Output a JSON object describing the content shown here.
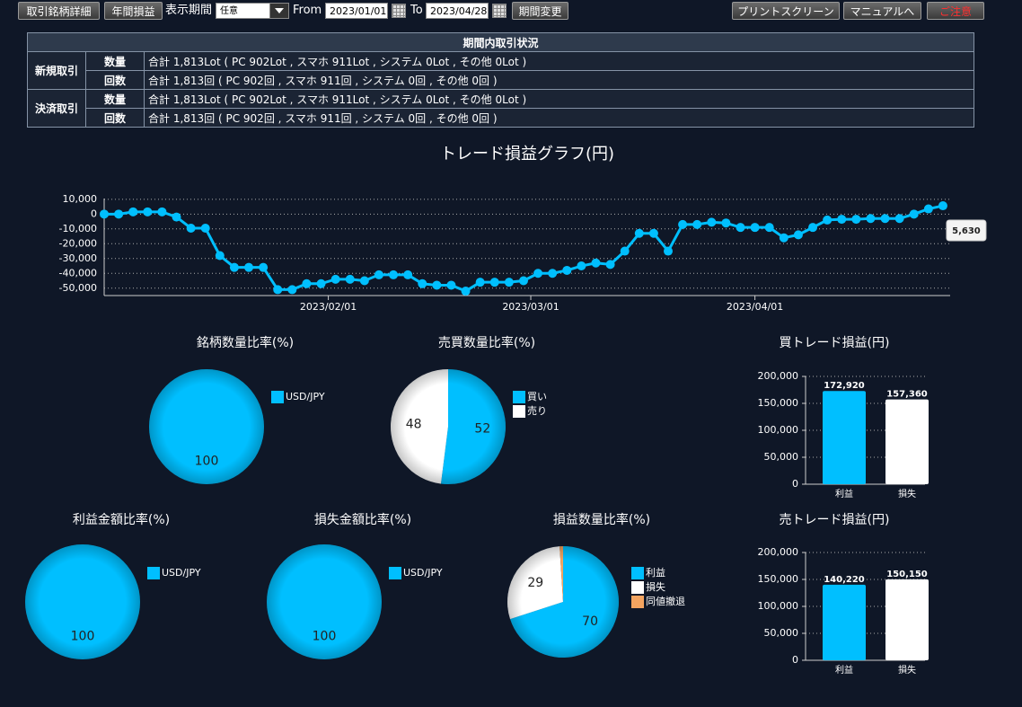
{
  "toolbar": {
    "buttons_left": [
      "取引銘柄詳細",
      "年間損益"
    ],
    "period_label": "表示期間",
    "period_select": "任意",
    "from_label": "From",
    "from_date": "2023/01/01",
    "to_label": "To",
    "to_date": "2023/04/28",
    "apply_button": "期間変更",
    "buttons_right": [
      "プリントスクリーン",
      "マニュアルへ",
      "ご注意"
    ]
  },
  "table": {
    "title": "期間内取引状況",
    "groups": [
      {
        "label": "新規取引",
        "rows": [
          [
            "数量",
            "合計 1,813Lot ( PC 902Lot , スマホ 911Lot , システム 0Lot , その他 0Lot )"
          ],
          [
            "回数",
            "合計 1,813回 ( PC 902回 , スマホ 911回 , システム 0回 , その他 0回 )"
          ]
        ]
      },
      {
        "label": "決済取引",
        "rows": [
          [
            "数量",
            "合計 1,813Lot ( PC 902Lot , スマホ 911Lot , システム 0Lot , その他 0Lot )"
          ],
          [
            "回数",
            "合計 1,813回 ( PC 902回 , スマホ 911回 , システム 0回 , その他 0回 )"
          ]
        ]
      }
    ]
  },
  "chart_data": [
    {
      "type": "line",
      "title": "トレード損益グラフ(円)",
      "color": "#00bfff",
      "grid": true,
      "x": [
        "2023/01/01",
        "2023/01/03",
        "2023/01/05",
        "2023/01/07",
        "2023/01/09",
        "2023/01/11",
        "2023/01/13",
        "2023/01/15",
        "2023/01/17",
        "2023/01/19",
        "2023/01/21",
        "2023/01/23",
        "2023/01/25",
        "2023/01/27",
        "2023/01/29",
        "2023/01/31",
        "2023/02/02",
        "2023/02/04",
        "2023/02/06",
        "2023/02/08",
        "2023/02/10",
        "2023/02/12",
        "2023/02/14",
        "2023/02/16",
        "2023/02/18",
        "2023/02/20",
        "2023/02/22",
        "2023/02/24",
        "2023/02/26",
        "2023/02/28",
        "2023/03/02",
        "2023/03/04",
        "2023/03/06",
        "2023/03/08",
        "2023/03/10",
        "2023/03/12",
        "2023/03/14",
        "2023/03/16",
        "2023/03/18",
        "2023/03/20",
        "2023/03/22",
        "2023/03/24",
        "2023/03/26",
        "2023/03/28",
        "2023/03/30",
        "2023/04/01",
        "2023/04/03",
        "2023/04/05",
        "2023/04/07",
        "2023/04/09",
        "2023/04/11",
        "2023/04/13",
        "2023/04/15",
        "2023/04/17",
        "2023/04/19",
        "2023/04/21",
        "2023/04/23",
        "2023/04/25",
        "2023/04/27"
      ],
      "values": [
        0,
        0,
        1500,
        1500,
        1500,
        -2000,
        -9500,
        -9500,
        -28000,
        -36000,
        -36000,
        -36000,
        -51000,
        -51000,
        -47000,
        -47000,
        -44000,
        -44000,
        -45000,
        -41000,
        -41000,
        -41000,
        -47000,
        -48000,
        -48000,
        -52000,
        -46000,
        -46000,
        -46000,
        -45000,
        -40000,
        -40000,
        -38000,
        -35000,
        -33000,
        -34000,
        -25000,
        -13000,
        -13000,
        -25000,
        -7000,
        -7000,
        -5500,
        -6000,
        -9000,
        -9000,
        -9000,
        -16000,
        -14000,
        -9000,
        -4000,
        -3500,
        -3500,
        -3000,
        -3000,
        -3000,
        0,
        3500,
        5630
      ],
      "annotation": "5,630",
      "xlim": [
        "2023/01/01",
        "2023/04/28"
      ],
      "xticks": [
        "2023/02/01",
        "2023/03/01",
        "2023/04/01"
      ],
      "ylim": [
        -55000,
        10500
      ],
      "yticks": [
        {
          "value": 10000,
          "label": "10,000"
        },
        0,
        {
          "value": -10000,
          "label": "-10,000"
        },
        {
          "value": -20000,
          "label": "-20,000"
        },
        {
          "value": -30000,
          "label": "-30,000"
        },
        {
          "value": -40000,
          "label": "-40,000"
        },
        {
          "value": -50000,
          "label": "-50,000"
        }
      ]
    },
    {
      "type": "pie",
      "title": "銘柄数量比率(%)",
      "categories": [
        "USD/JPY"
      ],
      "values": [
        100
      ],
      "colors": [
        "#00bfff"
      ]
    },
    {
      "type": "pie",
      "title": "売買数量比率(%)",
      "categories": [
        "買い",
        "売り"
      ],
      "values": [
        52,
        48
      ],
      "colors": [
        "#00bfff",
        "#ffffff"
      ]
    },
    {
      "type": "bar",
      "title": "買トレード損益(円)",
      "categories": [
        "利益",
        "損失"
      ],
      "values": [
        172920,
        157360
      ],
      "value_labels": [
        "172,920",
        "157,360"
      ],
      "colors": [
        "#00bfff",
        "#ffffff"
      ],
      "grid": true,
      "ylim": [
        0,
        200000
      ],
      "yticks": [
        0,
        {
          "value": 50000,
          "label": "50,000"
        },
        {
          "value": 100000,
          "label": "100,000"
        },
        {
          "value": 150000,
          "label": "150,000"
        },
        {
          "value": 200000,
          "label": "200,000"
        }
      ]
    },
    {
      "type": "pie",
      "title": "利益金額比率(%)",
      "categories": [
        "USD/JPY"
      ],
      "values": [
        100
      ],
      "colors": [
        "#00bfff"
      ]
    },
    {
      "type": "pie",
      "title": "損失金額比率(%)",
      "categories": [
        "USD/JPY"
      ],
      "values": [
        100
      ],
      "colors": [
        "#00bfff"
      ]
    },
    {
      "type": "pie",
      "title": "損益数量比率(%)",
      "categories": [
        "利益",
        "損失",
        "同値撤退"
      ],
      "values": [
        70,
        29,
        1
      ],
      "value_labels": [
        "70",
        "29",
        null
      ],
      "colors": [
        "#00bfff",
        "#ffffff",
        "#f4a460"
      ]
    },
    {
      "type": "bar",
      "title": "売トレード損益(円)",
      "categories": [
        "利益",
        "損失"
      ],
      "values": [
        140220,
        150150
      ],
      "value_labels": [
        "140,220",
        "150,150"
      ],
      "colors": [
        "#00bfff",
        "#ffffff"
      ],
      "grid": true,
      "ylim": [
        0,
        200000
      ],
      "yticks": [
        0,
        {
          "value": 50000,
          "label": "50,000"
        },
        {
          "value": 100000,
          "label": "100,000"
        },
        {
          "value": 150000,
          "label": "150,000"
        },
        {
          "value": 200000,
          "label": "200,000"
        }
      ]
    }
  ]
}
